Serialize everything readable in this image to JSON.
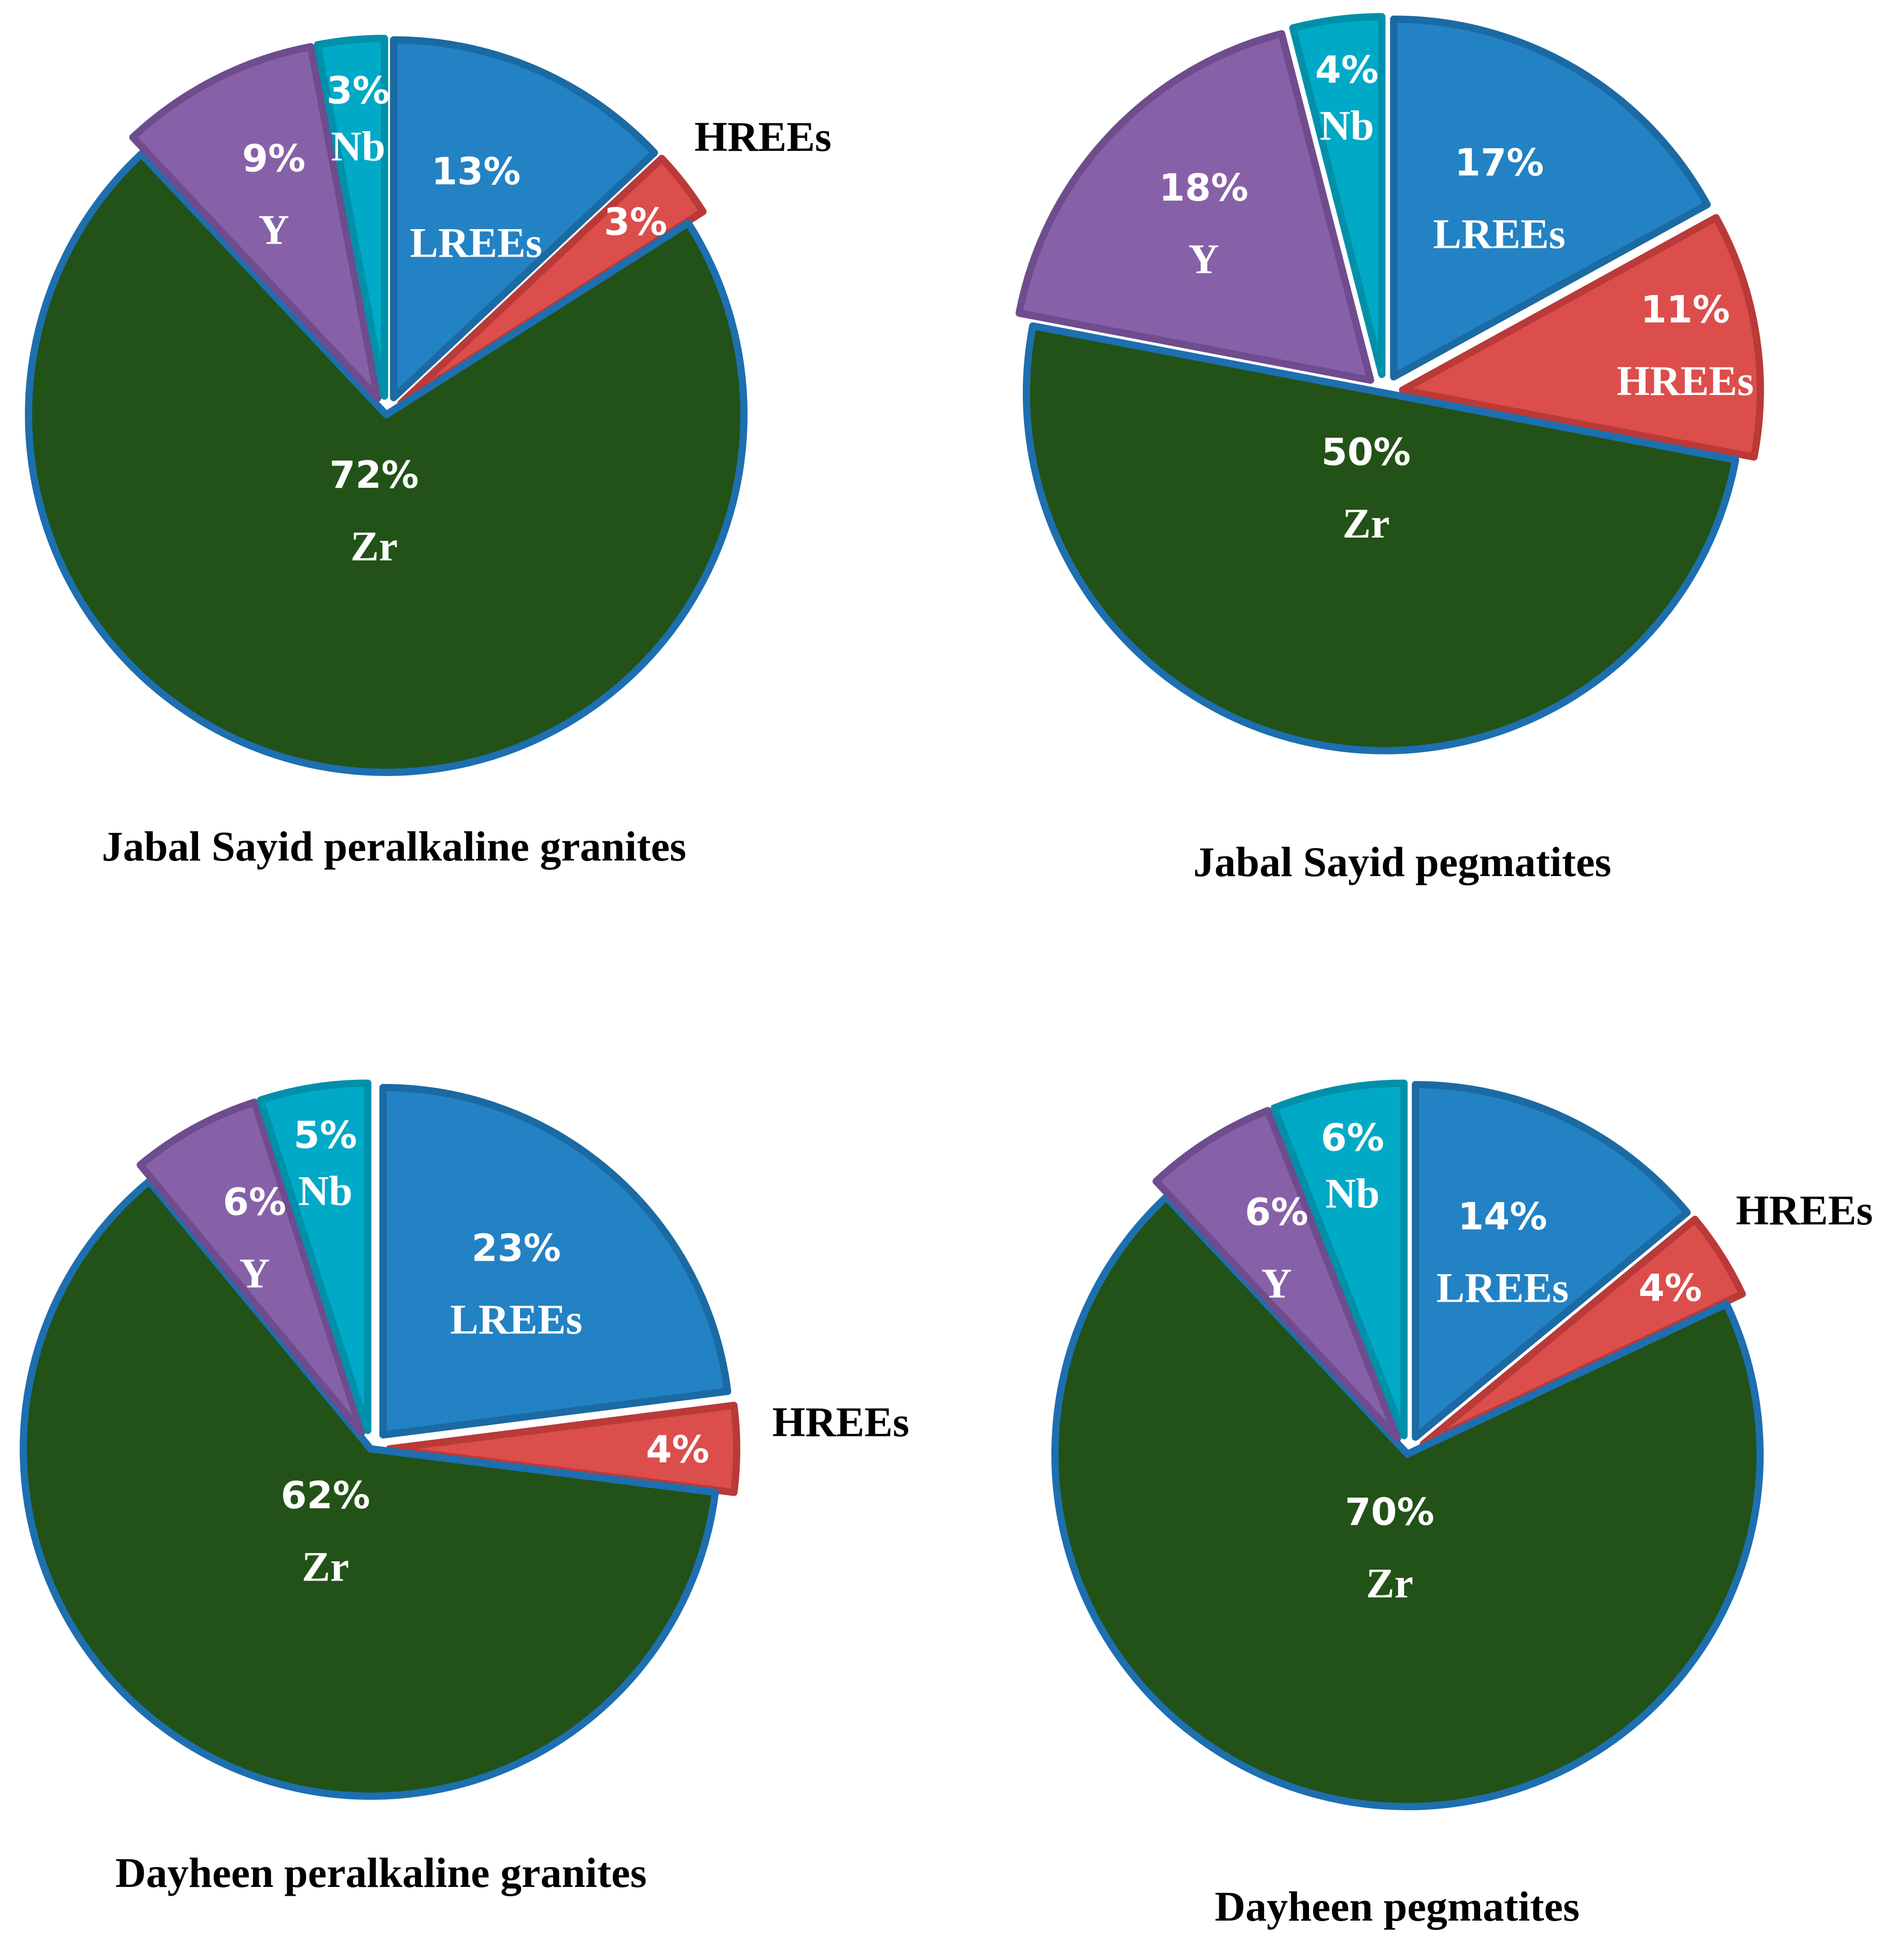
{
  "chart_data": [
    {
      "type": "pie",
      "title": "Jabal Sayid peralkaline granites",
      "categories": [
        "LREEs",
        "HREEs",
        "Zr",
        "Y",
        "Nb"
      ],
      "values": [
        13,
        3,
        72,
        9,
        3
      ],
      "labels": [
        "13%",
        "3%",
        "72%",
        "9%",
        "3%"
      ],
      "exploded": [
        "LREEs",
        "HREEs",
        "Y",
        "Nb"
      ],
      "outside_labels": [
        "HREEs"
      ]
    },
    {
      "type": "pie",
      "title": "Jabal Sayid pegmatites",
      "categories": [
        "LREEs",
        "HREEs",
        "Zr",
        "Y",
        "Nb"
      ],
      "values": [
        17,
        11,
        50,
        18,
        4
      ],
      "labels": [
        "17%",
        "11%",
        "50%",
        "18%",
        "4%"
      ],
      "exploded": [
        "LREEs",
        "HREEs",
        "Y",
        "Nb"
      ],
      "outside_labels": []
    },
    {
      "type": "pie",
      "title": "Dayheen peralkaline granites",
      "categories": [
        "LREEs",
        "HREEs",
        "Zr",
        "Y",
        "Nb"
      ],
      "values": [
        23,
        4,
        62,
        6,
        5
      ],
      "labels": [
        "23%",
        "4%",
        "62%",
        "6%",
        "5%"
      ],
      "exploded": [
        "LREEs",
        "HREEs",
        "Y",
        "Nb"
      ],
      "outside_labels": [
        "HREEs"
      ]
    },
    {
      "type": "pie",
      "title": "Dayheen pegmatites",
      "categories": [
        "LREEs",
        "HREEs",
        "Zr",
        "Y",
        "Nb"
      ],
      "values": [
        14,
        4,
        70,
        6,
        6
      ],
      "labels": [
        "14%",
        "4%",
        "70%",
        "6%",
        "6%"
      ],
      "exploded": [
        "LREEs",
        "HREEs",
        "Y",
        "Nb"
      ],
      "outside_labels": [
        "HREEs"
      ]
    }
  ],
  "colors": {
    "LREEs": "#2382c4",
    "HREEs": "#dc4e4b",
    "Zr": "#225217",
    "Y": "#8761a8",
    "Nb": "#00aac6"
  },
  "borders": {
    "LREEs": "#1b6aa3",
    "HREEs": "#b93a38",
    "Zr": "#1d6fb0",
    "Y": "#6e4c8d",
    "Nb": "#0090aa"
  }
}
